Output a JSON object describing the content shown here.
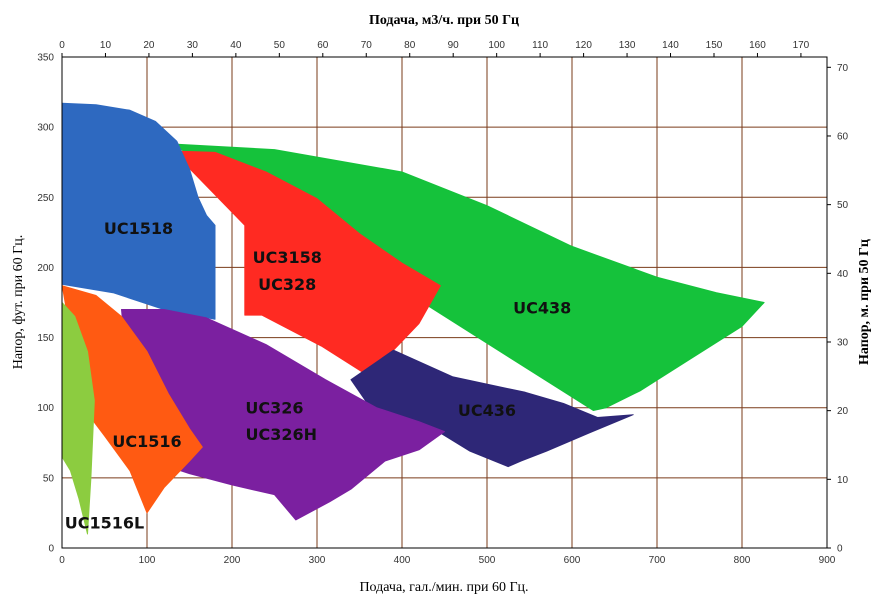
{
  "chart_data": {
    "type": "area",
    "title": "",
    "x_bottom": {
      "label": "Подача, гал./мин. при 60 Гц.",
      "range": [
        0,
        900
      ],
      "ticks": [
        "0",
        "100",
        "200",
        "300",
        "400",
        "500",
        "600",
        "700",
        "800",
        "900"
      ]
    },
    "x_top": {
      "label": "Подача, м3/ч. при 50 Гц",
      "range": [
        0,
        176
      ],
      "ticks": [
        "0",
        "10",
        "20",
        "30",
        "40",
        "50",
        "60",
        "70",
        "80",
        "90",
        "100",
        "110",
        "120",
        "130",
        "140",
        "150",
        "160",
        "170"
      ]
    },
    "y_left": {
      "label": "Напор, фут. при 60 Гц.",
      "range": [
        0,
        350
      ],
      "ticks": [
        "0",
        "50",
        "100",
        "150",
        "200",
        "250",
        "300",
        "350"
      ]
    },
    "y_right": {
      "label": "Напор, м. при 50 Гц",
      "range": [
        0,
        71.5
      ],
      "ticks": [
        "0",
        "10",
        "20",
        "30",
        "40",
        "50",
        "60",
        "70"
      ]
    },
    "grid": true,
    "series": [
      {
        "name": "UC438",
        "color": "#15c23b",
        "points": [
          [
            130,
            288
          ],
          [
            250,
            284
          ],
          [
            400,
            268
          ],
          [
            500,
            244
          ],
          [
            600,
            215
          ],
          [
            700,
            193
          ],
          [
            770,
            182
          ],
          [
            826,
            175
          ],
          [
            800,
            158
          ],
          [
            740,
            135
          ],
          [
            680,
            112
          ],
          [
            640,
            100
          ],
          [
            625,
            98
          ]
        ]
      },
      {
        "name": "UC3158 UC328",
        "color": "#ff2a22",
        "points": [
          [
            130,
            283
          ],
          [
            180,
            282
          ],
          [
            240,
            268
          ],
          [
            300,
            249
          ],
          [
            350,
            224
          ],
          [
            400,
            203
          ],
          [
            445,
            187
          ],
          [
            420,
            160
          ],
          [
            390,
            141
          ],
          [
            365,
            121
          ],
          [
            305,
            144
          ],
          [
            235,
            166
          ],
          [
            215,
            166
          ],
          [
            215,
            230
          ]
        ]
      },
      {
        "name": "UC436",
        "color": "#2e2777",
        "points": [
          [
            340,
            120
          ],
          [
            390,
            141
          ],
          [
            460,
            122
          ],
          [
            545,
            111
          ],
          [
            590,
            103
          ],
          [
            630,
            93
          ],
          [
            672,
            95
          ],
          [
            620,
            82
          ],
          [
            570,
            69
          ],
          [
            540,
            62
          ],
          [
            525,
            58
          ],
          [
            480,
            69
          ],
          [
            445,
            82
          ],
          [
            380,
            85
          ]
        ]
      },
      {
        "name": "UC1518",
        "color": "#2e69c0",
        "points": [
          [
            0,
            317
          ],
          [
            40,
            316
          ],
          [
            80,
            312
          ],
          [
            110,
            304
          ],
          [
            135,
            290
          ],
          [
            150,
            270
          ],
          [
            160,
            250
          ],
          [
            170,
            237
          ],
          [
            180,
            230
          ],
          [
            180,
            163
          ],
          [
            120,
            170
          ],
          [
            60,
            182
          ],
          [
            0,
            188
          ]
        ]
      },
      {
        "name": "UC326 UC326H",
        "color": "#7b20a0",
        "points": [
          [
            70,
            170
          ],
          [
            120,
            170
          ],
          [
            170,
            164
          ],
          [
            240,
            145
          ],
          [
            310,
            120
          ],
          [
            370,
            100
          ],
          [
            420,
            90
          ],
          [
            450,
            83
          ],
          [
            420,
            70
          ],
          [
            380,
            62
          ],
          [
            340,
            42
          ],
          [
            315,
            33
          ],
          [
            275,
            20
          ],
          [
            250,
            38
          ],
          [
            200,
            45
          ],
          [
            150,
            53
          ],
          [
            100,
            63
          ],
          [
            80,
            105
          ]
        ]
      },
      {
        "name": "UC1516",
        "color": "#ff5a12",
        "points": [
          [
            0,
            187
          ],
          [
            40,
            180
          ],
          [
            70,
            165
          ],
          [
            100,
            140
          ],
          [
            125,
            110
          ],
          [
            150,
            85
          ],
          [
            165,
            72
          ],
          [
            150,
            62
          ],
          [
            120,
            43
          ],
          [
            100,
            25
          ],
          [
            80,
            55
          ],
          [
            50,
            80
          ],
          [
            25,
            100
          ],
          [
            0,
            188
          ]
        ]
      },
      {
        "name": "UC1516L",
        "color": "#8ccc40",
        "points": [
          [
            0,
            175
          ],
          [
            15,
            165
          ],
          [
            30,
            140
          ],
          [
            38,
            105
          ],
          [
            34,
            50
          ],
          [
            30,
            10
          ],
          [
            20,
            35
          ],
          [
            10,
            55
          ],
          [
            0,
            65
          ]
        ]
      }
    ],
    "labels": [
      {
        "text": "UC1518",
        "x": 90,
        "y": 224
      },
      {
        "text": "UC3158",
        "x": 265,
        "y": 203
      },
      {
        "text": "UC328",
        "x": 265,
        "y": 184
      },
      {
        "text": "UC438",
        "x": 565,
        "y": 167
      },
      {
        "text": "UC436",
        "x": 500,
        "y": 94
      },
      {
        "text": "UC326",
        "x": 250,
        "y": 96
      },
      {
        "text": "UC326H",
        "x": 258,
        "y": 77
      },
      {
        "text": "UC1516",
        "x": 100,
        "y": 72
      },
      {
        "text": "UC1516L",
        "x": 50,
        "y": 14
      }
    ]
  }
}
